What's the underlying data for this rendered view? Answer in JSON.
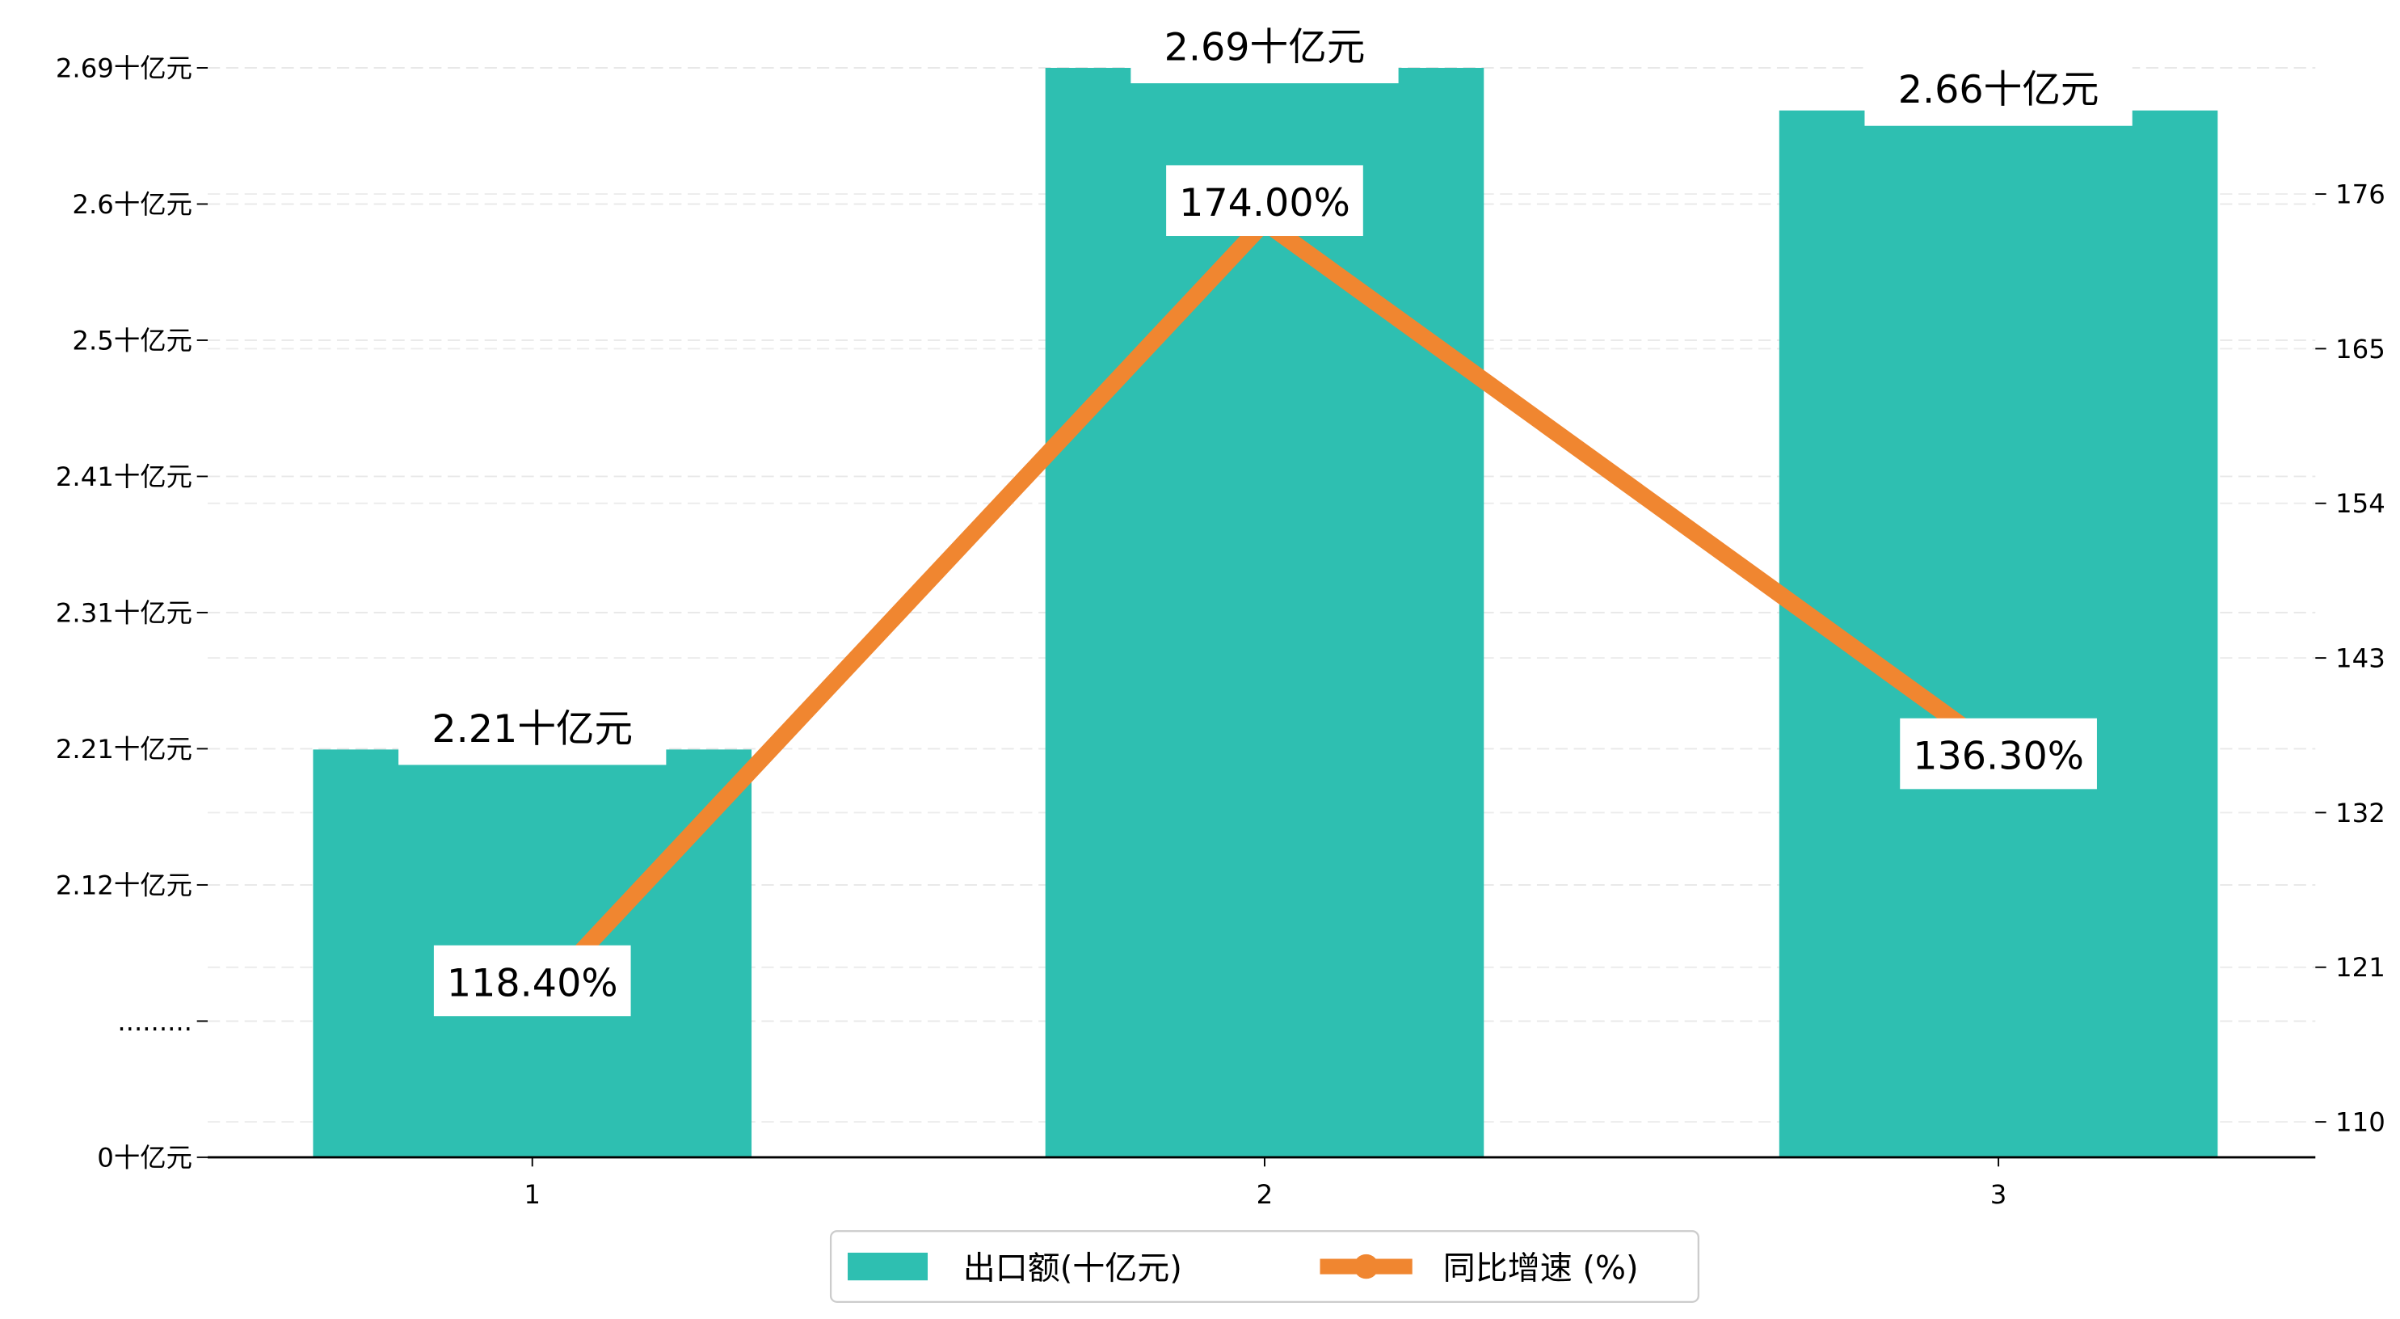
{
  "chart_data": {
    "type": "bar",
    "categories": [
      "1",
      "2",
      "3"
    ],
    "series": [
      {
        "name": "出口额(十亿元)",
        "kind": "bar",
        "axis": "left",
        "values": [
          2.21,
          2.69,
          2.66
        ],
        "labels": [
          "2.21十亿元",
          "2.69十亿元",
          "2.66十亿元"
        ],
        "color": "#2ebfb1"
      },
      {
        "name": "同比增速 (%)",
        "kind": "line",
        "axis": "right",
        "values": [
          118.4,
          174.0,
          136.3
        ],
        "labels": [
          "118.40%",
          "174.00%",
          "136.30%"
        ],
        "color": "#f08630"
      }
    ],
    "left_axis": {
      "ticks": [
        {
          "value": 2.69,
          "label": "2.69十亿元"
        },
        {
          "value": 2.6,
          "label": "2.6十亿元"
        },
        {
          "value": 2.5,
          "label": "2.5十亿元"
        },
        {
          "value": 2.41,
          "label": "2.41十亿元"
        },
        {
          "value": 2.31,
          "label": "2.31十亿元"
        },
        {
          "value": 2.21,
          "label": "2.21十亿元"
        },
        {
          "value": 2.12,
          "label": "2.12十亿元"
        },
        {
          "value": null,
          "label": "........."
        },
        {
          "value": 0,
          "label": "0十亿元"
        }
      ],
      "broken": true
    },
    "right_axis": {
      "ticks": [
        176,
        165,
        154,
        143,
        132,
        121,
        110
      ],
      "ylim": [
        107.5,
        181
      ]
    },
    "grid": true,
    "legend_position": "bottom-center"
  }
}
